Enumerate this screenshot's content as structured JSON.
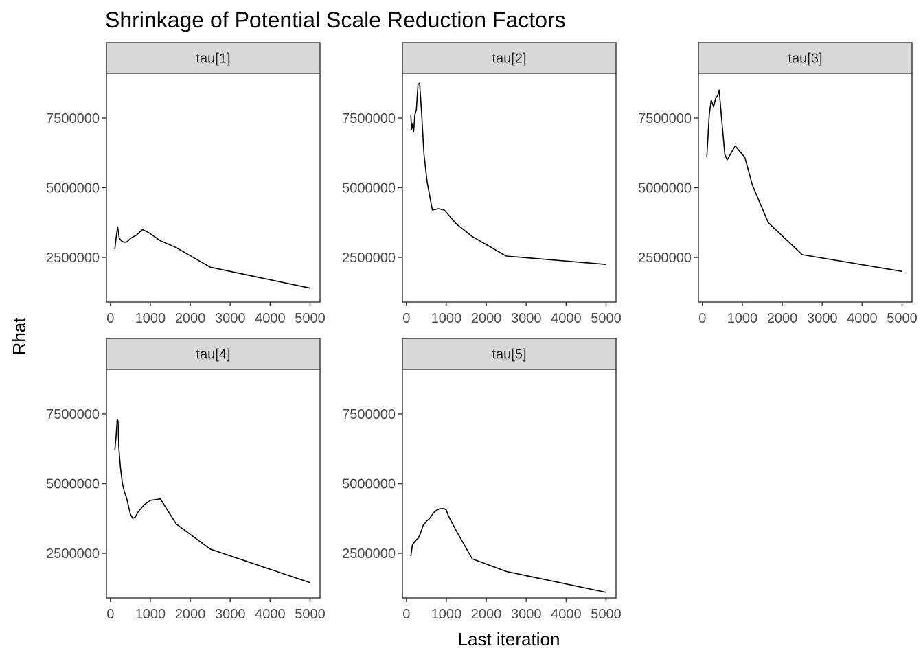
{
  "chart_data": {
    "type": "line",
    "title": "Shrinkage of Potential Scale Reduction Factors",
    "xlabel": "Last iteration",
    "ylabel": "Rhat",
    "xlim": [
      -100,
      5250
    ],
    "ylim": [
      900000,
      9100000
    ],
    "xticks": [
      0,
      1000,
      2000,
      3000,
      4000,
      5000
    ],
    "yticks": [
      2500000,
      5000000,
      7500000
    ],
    "grid": false,
    "legend": "none",
    "line_color": "#000000",
    "panels": [
      {
        "name": "tau[1]",
        "x": [
          110,
          140,
          180,
          220,
          270,
          330,
          400,
          520,
          650,
          800,
          950,
          1100,
          1250,
          1650,
          2500,
          5000
        ],
        "y": [
          2800000,
          3200000,
          3600000,
          3200000,
          3100000,
          3050000,
          3050000,
          3200000,
          3300000,
          3500000,
          3400000,
          3250000,
          3100000,
          2850000,
          2150000,
          1400000
        ]
      },
      {
        "name": "tau[2]",
        "x": [
          110,
          130,
          150,
          180,
          210,
          250,
          290,
          330,
          380,
          440,
          520,
          650,
          800,
          950,
          1100,
          1250,
          1650,
          2500,
          5000
        ],
        "y": [
          7600000,
          7100000,
          7300000,
          7000000,
          7600000,
          7800000,
          8700000,
          8750000,
          7700000,
          6200000,
          5200000,
          4200000,
          4250000,
          4200000,
          3950000,
          3700000,
          3250000,
          2550000,
          2250000
        ]
      },
      {
        "name": "tau[3]",
        "x": [
          110,
          170,
          220,
          280,
          330,
          380,
          420,
          480,
          560,
          620,
          820,
          1060,
          1250,
          1650,
          2500,
          5000
        ],
        "y": [
          6100000,
          7600000,
          8150000,
          7900000,
          8200000,
          8300000,
          8500000,
          7500000,
          6200000,
          6000000,
          6500000,
          6100000,
          5100000,
          3750000,
          2600000,
          2000000
        ]
      },
      {
        "name": "tau[4]",
        "x": [
          110,
          140,
          170,
          190,
          210,
          250,
          300,
          350,
          400,
          450,
          500,
          560,
          620,
          700,
          850,
          1000,
          1250,
          1650,
          2500,
          5000
        ],
        "y": [
          6200000,
          6700000,
          7300000,
          7250000,
          6300000,
          5600000,
          5000000,
          4700000,
          4500000,
          4200000,
          3900000,
          3750000,
          3800000,
          4000000,
          4250000,
          4400000,
          4450000,
          3550000,
          2650000,
          1450000
        ]
      },
      {
        "name": "tau[5]",
        "x": [
          110,
          150,
          200,
          260,
          300,
          360,
          420,
          500,
          580,
          680,
          760,
          840,
          900,
          950,
          1000,
          1050,
          1250,
          1650,
          2500,
          5000
        ],
        "y": [
          2400000,
          2800000,
          2900000,
          3000000,
          3050000,
          3250000,
          3500000,
          3650000,
          3750000,
          3950000,
          4050000,
          4100000,
          4100000,
          4100000,
          4050000,
          3850000,
          3300000,
          2300000,
          1850000,
          1100000
        ]
      }
    ]
  }
}
